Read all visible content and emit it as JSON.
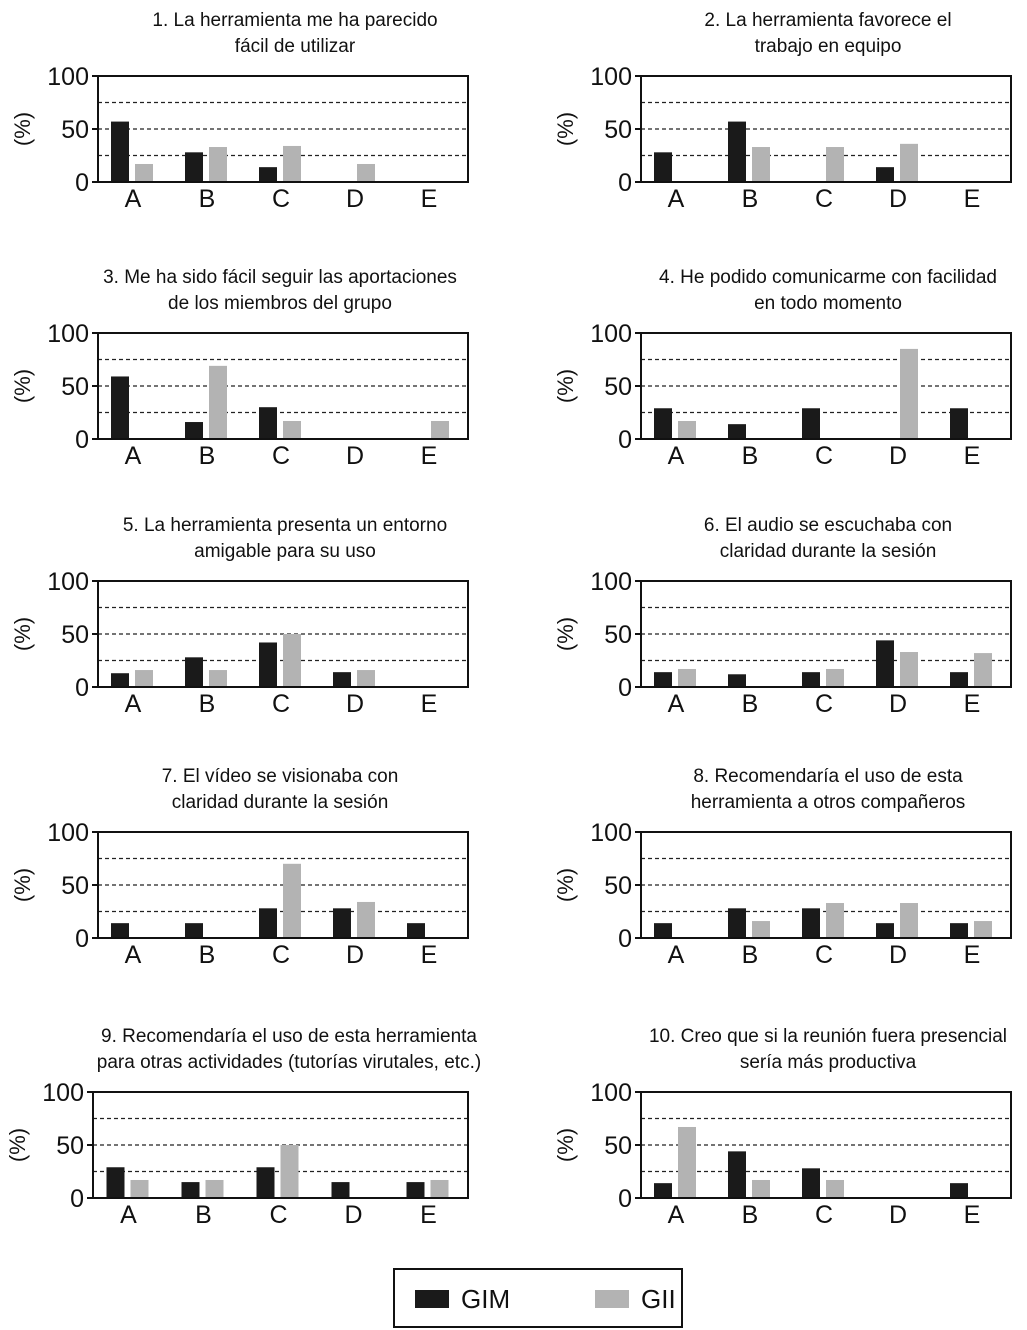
{
  "series_colors": {
    "GIM": "#1a1a1a",
    "GII": "#b3b3b3"
  },
  "legend": {
    "gim": "GIM",
    "gii": "GII"
  },
  "chart_data": [
    {
      "type": "bar",
      "title_lines": [
        "1. La herramienta me ha parecido",
        "fácil de utilizar"
      ],
      "ylabel": "(%)",
      "ylim": [
        0,
        100
      ],
      "yticks": [
        0,
        50,
        100
      ],
      "grid": [
        25,
        50,
        75
      ],
      "categories": [
        "A",
        "B",
        "C",
        "D",
        "E"
      ],
      "series": [
        {
          "name": "GIM",
          "values": [
            57,
            28,
            14,
            0,
            0
          ]
        },
        {
          "name": "GII",
          "values": [
            17,
            33,
            34,
            17,
            0
          ]
        }
      ]
    },
    {
      "type": "bar",
      "title_lines": [
        "2. La herramienta favorece el",
        "trabajo en equipo"
      ],
      "ylabel": "(%)",
      "ylim": [
        0,
        100
      ],
      "yticks": [
        0,
        50,
        100
      ],
      "grid": [
        25,
        50,
        75
      ],
      "categories": [
        "A",
        "B",
        "C",
        "D",
        "E"
      ],
      "series": [
        {
          "name": "GIM",
          "values": [
            28,
            57,
            0,
            14,
            0
          ]
        },
        {
          "name": "GII",
          "values": [
            0,
            33,
            33,
            36,
            0
          ]
        }
      ]
    },
    {
      "type": "bar",
      "title_lines": [
        "3. Me ha sido fácil seguir las aportaciones",
        "de los miembros del grupo"
      ],
      "ylabel": "(%)",
      "ylim": [
        0,
        100
      ],
      "yticks": [
        0,
        50,
        100
      ],
      "grid": [
        25,
        50,
        75
      ],
      "categories": [
        "A",
        "B",
        "C",
        "D",
        "E"
      ],
      "series": [
        {
          "name": "GIM",
          "values": [
            59,
            16,
            30,
            0,
            0
          ]
        },
        {
          "name": "GII",
          "values": [
            0,
            69,
            17,
            0,
            17
          ]
        }
      ]
    },
    {
      "type": "bar",
      "title_lines": [
        "4. He podido comunicarme con facilidad",
        "en todo momento"
      ],
      "ylabel": "(%)",
      "ylim": [
        0,
        100
      ],
      "yticks": [
        0,
        50,
        100
      ],
      "grid": [
        25,
        50,
        75
      ],
      "categories": [
        "A",
        "B",
        "C",
        "D",
        "E"
      ],
      "series": [
        {
          "name": "GIM",
          "values": [
            29,
            14,
            29,
            0,
            29
          ]
        },
        {
          "name": "GII",
          "values": [
            17,
            0,
            0,
            85,
            0
          ]
        }
      ]
    },
    {
      "type": "bar",
      "title_lines": [
        "5. La herramienta presenta un entorno",
        "amigable para su uso"
      ],
      "ylabel": "(%)",
      "ylim": [
        0,
        100
      ],
      "yticks": [
        0,
        50,
        100
      ],
      "grid": [
        25,
        50,
        75
      ],
      "categories": [
        "A",
        "B",
        "C",
        "D",
        "E"
      ],
      "series": [
        {
          "name": "GIM",
          "values": [
            13,
            28,
            42,
            14,
            0
          ]
        },
        {
          "name": "GII",
          "values": [
            16,
            16,
            50,
            16,
            0
          ]
        }
      ]
    },
    {
      "type": "bar",
      "title_lines": [
        "6. El audio se escuchaba con",
        "claridad durante la sesión"
      ],
      "ylabel": "(%)",
      "ylim": [
        0,
        100
      ],
      "yticks": [
        0,
        50,
        100
      ],
      "grid": [
        25,
        50,
        75
      ],
      "categories": [
        "A",
        "B",
        "C",
        "D",
        "E"
      ],
      "series": [
        {
          "name": "GIM",
          "values": [
            14,
            12,
            14,
            44,
            14
          ]
        },
        {
          "name": "GII",
          "values": [
            17,
            0,
            17,
            33,
            32
          ]
        }
      ]
    },
    {
      "type": "bar",
      "title_lines": [
        "7. El vídeo se visionaba con",
        "claridad durante la sesión"
      ],
      "ylabel": "(%)",
      "ylim": [
        0,
        100
      ],
      "yticks": [
        0,
        50,
        100
      ],
      "grid": [
        25,
        50,
        75
      ],
      "categories": [
        "A",
        "B",
        "C",
        "D",
        "E"
      ],
      "series": [
        {
          "name": "GIM",
          "values": [
            14,
            14,
            28,
            28,
            14
          ]
        },
        {
          "name": "GII",
          "values": [
            0,
            0,
            70,
            34,
            0
          ]
        }
      ]
    },
    {
      "type": "bar",
      "title_lines": [
        "8. Recomendaría el uso de esta",
        "herramienta a otros compañeros"
      ],
      "ylabel": "(%)",
      "ylim": [
        0,
        100
      ],
      "yticks": [
        0,
        50,
        100
      ],
      "grid": [
        25,
        50,
        75
      ],
      "categories": [
        "A",
        "B",
        "C",
        "D",
        "E"
      ],
      "series": [
        {
          "name": "GIM",
          "values": [
            14,
            28,
            28,
            14,
            14
          ]
        },
        {
          "name": "GII",
          "values": [
            0,
            16,
            33,
            33,
            16
          ]
        }
      ]
    },
    {
      "type": "bar",
      "title_lines": [
        "9. Recomendaría el uso de esta herramienta",
        "para otras actividades (tutorías virutales, etc.)"
      ],
      "ylabel": "(%)",
      "ylim": [
        0,
        100
      ],
      "yticks": [
        0,
        50,
        100
      ],
      "grid": [
        25,
        50,
        75
      ],
      "categories": [
        "A",
        "B",
        "C",
        "D",
        "E"
      ],
      "series": [
        {
          "name": "GIM",
          "values": [
            29,
            15,
            29,
            15,
            15
          ]
        },
        {
          "name": "GII",
          "values": [
            17,
            17,
            50,
            0,
            17
          ]
        }
      ]
    },
    {
      "type": "bar",
      "title_lines": [
        "10. Creo que si la reunión fuera presencial",
        "sería más productiva"
      ],
      "ylabel": "(%)",
      "ylim": [
        0,
        100
      ],
      "yticks": [
        0,
        50,
        100
      ],
      "grid": [
        25,
        50,
        75
      ],
      "categories": [
        "A",
        "B",
        "C",
        "D",
        "E"
      ],
      "series": [
        {
          "name": "GIM",
          "values": [
            14,
            44,
            28,
            0,
            14
          ]
        },
        {
          "name": "GII",
          "values": [
            67,
            17,
            17,
            0,
            0
          ]
        }
      ]
    }
  ]
}
